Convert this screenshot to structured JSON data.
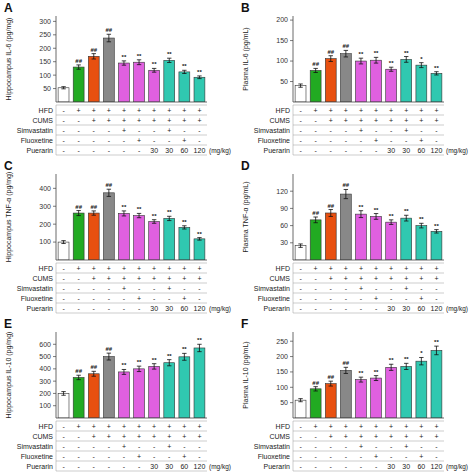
{
  "chart_data": [
    {
      "type": "bar",
      "title": "A",
      "ylabel": "Hippocampus IL-6 (pg/mg)",
      "categories": [
        null,
        null,
        null,
        null,
        null,
        null,
        null,
        null,
        null,
        null
      ],
      "values": [
        53,
        130,
        170,
        238,
        145,
        148,
        118,
        155,
        112,
        92
      ],
      "errors": [
        4,
        8,
        10,
        14,
        8,
        9,
        7,
        8,
        6,
        5
      ],
      "sig_labels": [
        null,
        "##",
        "##",
        "##",
        "**",
        "**",
        "**",
        "**",
        "**",
        "**"
      ],
      "colors": [
        "#ffffff",
        "#22aa22",
        "#e85010",
        "#888888",
        "#e060e0",
        "#e060e0",
        "#e060e0",
        "#30c8b0",
        "#30c8b0",
        "#30c8b0"
      ],
      "ylim": [
        0,
        320
      ],
      "yticks": [
        50,
        100,
        150,
        200,
        250,
        300
      ],
      "grid": false,
      "table": [
        {
          "label": "HFD",
          "cells": [
            "-",
            "+",
            "+",
            "+",
            "+",
            "+",
            "+",
            "+",
            "+",
            "+"
          ]
        },
        {
          "label": "CUMS",
          "cells": [
            "-",
            "-",
            "+",
            "+",
            "+",
            "+",
            "+",
            "+",
            "+",
            "+"
          ]
        },
        {
          "label": "Simvastatin",
          "cells": [
            "-",
            "-",
            "-",
            "-",
            "+",
            "-",
            "-",
            "+",
            "-",
            "-"
          ]
        },
        {
          "label": "Fluoxetine",
          "cells": [
            "-",
            "-",
            "-",
            "-",
            "-",
            "+",
            "-",
            "-",
            "+",
            "-"
          ]
        },
        {
          "label": "Puerarin",
          "cells": [
            "-",
            "-",
            "-",
            "-",
            "-",
            "-",
            "30",
            "30",
            "60",
            "120"
          ],
          "unit": "(mg/kg)"
        }
      ]
    },
    {
      "type": "bar",
      "title": "B",
      "ylabel": "Plasma IL-6 (pg/mL)",
      "categories": [
        null,
        null,
        null,
        null,
        null,
        null,
        null,
        null,
        null,
        null
      ],
      "values": [
        40,
        77,
        106,
        118,
        100,
        102,
        80,
        104,
        90,
        70
      ],
      "errors": [
        4,
        5,
        7,
        8,
        7,
        7,
        5,
        7,
        6,
        4
      ],
      "sig_labels": [
        null,
        "##",
        "##",
        "##",
        "**",
        "**",
        "**",
        "**",
        "*",
        "**"
      ],
      "colors": [
        "#ffffff",
        "#22aa22",
        "#e85010",
        "#888888",
        "#e060e0",
        "#e060e0",
        "#e060e0",
        "#30c8b0",
        "#30c8b0",
        "#30c8b0"
      ],
      "ylim": [
        0,
        210
      ],
      "yticks": [
        50,
        100,
        150,
        200
      ],
      "grid": false,
      "table": [
        {
          "label": "HFD",
          "cells": [
            "-",
            "+",
            "+",
            "+",
            "+",
            "+",
            "+",
            "+",
            "+",
            "+"
          ]
        },
        {
          "label": "CUMS",
          "cells": [
            "-",
            "-",
            "+",
            "+",
            "+",
            "+",
            "+",
            "+",
            "+",
            "+"
          ]
        },
        {
          "label": "Simvastatin",
          "cells": [
            "-",
            "-",
            "-",
            "-",
            "+",
            "-",
            "-",
            "+",
            "-",
            "-"
          ]
        },
        {
          "label": "Fluoxetine",
          "cells": [
            "-",
            "-",
            "-",
            "-",
            "-",
            "+",
            "-",
            "-",
            "+",
            "-"
          ]
        },
        {
          "label": "Puerarin",
          "cells": [
            "-",
            "-",
            "-",
            "-",
            "-",
            "-",
            "30",
            "30",
            "60",
            "120"
          ],
          "unit": "(mg/kg)"
        }
      ]
    },
    {
      "type": "bar",
      "title": "C",
      "ylabel": "Hippocampus TNF-α (pg/mg)",
      "categories": [
        null,
        null,
        null,
        null,
        null,
        null,
        null,
        null,
        null,
        null
      ],
      "values": [
        100,
        262,
        262,
        375,
        260,
        248,
        215,
        232,
        182,
        118
      ],
      "errors": [
        8,
        14,
        12,
        20,
        14,
        12,
        10,
        12,
        9,
        7
      ],
      "sig_labels": [
        null,
        "##",
        "##",
        "##",
        "**",
        "**",
        "**",
        "**",
        "**",
        "**"
      ],
      "colors": [
        "#ffffff",
        "#22aa22",
        "#e85010",
        "#888888",
        "#e060e0",
        "#e060e0",
        "#e060e0",
        "#30c8b0",
        "#30c8b0",
        "#30c8b0"
      ],
      "ylim": [
        0,
        480
      ],
      "yticks": [
        100,
        200,
        300,
        400
      ],
      "grid": false,
      "table": [
        {
          "label": "HFD",
          "cells": [
            "-",
            "+",
            "+",
            "+",
            "+",
            "+",
            "+",
            "+",
            "+",
            "+"
          ]
        },
        {
          "label": "CUMS",
          "cells": [
            "-",
            "-",
            "+",
            "+",
            "+",
            "+",
            "+",
            "+",
            "+",
            "+"
          ]
        },
        {
          "label": "Simvastatin",
          "cells": [
            "-",
            "-",
            "-",
            "-",
            "+",
            "-",
            "-",
            "+",
            "-",
            "-"
          ]
        },
        {
          "label": "Fluoxetine",
          "cells": [
            "-",
            "-",
            "-",
            "-",
            "-",
            "+",
            "-",
            "-",
            "+",
            "-"
          ]
        },
        {
          "label": "Puerarin",
          "cells": [
            "-",
            "-",
            "-",
            "-",
            "-",
            "-",
            "30",
            "30",
            "60",
            "120"
          ],
          "unit": "(mg/kg)"
        }
      ]
    },
    {
      "type": "bar",
      "title": "D",
      "ylabel": "Plasma TNF-α (pg/mL)",
      "categories": [
        null,
        null,
        null,
        null,
        null,
        null,
        null,
        null,
        null,
        null
      ],
      "values": [
        25,
        70,
        82,
        115,
        80,
        76,
        66,
        73,
        60,
        50
      ],
      "errors": [
        3,
        5,
        6,
        8,
        6,
        5,
        4,
        5,
        4,
        3
      ],
      "sig_labels": [
        null,
        "##",
        "##",
        "##",
        "**",
        "**",
        "**",
        "**",
        "**",
        "**"
      ],
      "colors": [
        "#ffffff",
        "#22aa22",
        "#e85010",
        "#888888",
        "#e060e0",
        "#e060e0",
        "#e060e0",
        "#30c8b0",
        "#30c8b0",
        "#30c8b0"
      ],
      "ylim": [
        0,
        150
      ],
      "yticks": [
        30,
        60,
        90,
        120
      ],
      "grid": false,
      "table": [
        {
          "label": "HFD",
          "cells": [
            "-",
            "+",
            "+",
            "+",
            "+",
            "+",
            "+",
            "+",
            "+",
            "+"
          ]
        },
        {
          "label": "CUMS",
          "cells": [
            "-",
            "-",
            "+",
            "+",
            "+",
            "+",
            "+",
            "+",
            "+",
            "+"
          ]
        },
        {
          "label": "Simvastatin",
          "cells": [
            "-",
            "-",
            "-",
            "-",
            "+",
            "-",
            "-",
            "+",
            "-",
            "-"
          ]
        },
        {
          "label": "Fluoxetine",
          "cells": [
            "-",
            "-",
            "-",
            "-",
            "-",
            "+",
            "-",
            "-",
            "+",
            "-"
          ]
        },
        {
          "label": "Puerarin",
          "cells": [
            "-",
            "-",
            "-",
            "-",
            "-",
            "-",
            "30",
            "30",
            "60",
            "120"
          ],
          "unit": "(mg/kg)"
        }
      ]
    },
    {
      "type": "bar",
      "title": "E",
      "ylabel": "Hippocampus IL-10 (pg/mg)",
      "categories": [
        null,
        null,
        null,
        null,
        null,
        null,
        null,
        null,
        null,
        null
      ],
      "values": [
        200,
        330,
        360,
        500,
        375,
        400,
        420,
        450,
        498,
        570
      ],
      "errors": [
        15,
        18,
        20,
        28,
        20,
        22,
        22,
        25,
        28,
        30
      ],
      "sig_labels": [
        null,
        "##",
        "##",
        "##",
        "**",
        "**",
        "**",
        "**",
        "**",
        "**"
      ],
      "colors": [
        "#ffffff",
        "#22aa22",
        "#e85010",
        "#888888",
        "#e060e0",
        "#e060e0",
        "#e060e0",
        "#30c8b0",
        "#30c8b0",
        "#30c8b0"
      ],
      "ylim": [
        0,
        700
      ],
      "yticks": [
        100,
        200,
        300,
        400,
        500,
        600
      ],
      "grid": false,
      "table": [
        {
          "label": "HFD",
          "cells": [
            "-",
            "+",
            "+",
            "+",
            "+",
            "+",
            "+",
            "+",
            "+",
            "+"
          ]
        },
        {
          "label": "CUMS",
          "cells": [
            "-",
            "-",
            "+",
            "+",
            "+",
            "+",
            "+",
            "+",
            "+",
            "+"
          ]
        },
        {
          "label": "Simvastatin",
          "cells": [
            "-",
            "-",
            "-",
            "-",
            "+",
            "-",
            "-",
            "+",
            "-",
            "-"
          ]
        },
        {
          "label": "Fluoxetine",
          "cells": [
            "-",
            "-",
            "-",
            "-",
            "-",
            "+",
            "-",
            "-",
            "+",
            "-"
          ]
        },
        {
          "label": "Puerarin",
          "cells": [
            "-",
            "-",
            "-",
            "-",
            "-",
            "-",
            "30",
            "30",
            "60",
            "120"
          ],
          "unit": "(mg/kg)"
        }
      ]
    },
    {
      "type": "bar",
      "title": "F",
      "ylabel": "Plasma IL-10 (pg/mL)",
      "categories": [
        null,
        null,
        null,
        null,
        null,
        null,
        null,
        null,
        null,
        null
      ],
      "values": [
        58,
        95,
        112,
        155,
        125,
        130,
        165,
        168,
        185,
        220
      ],
      "errors": [
        5,
        7,
        8,
        10,
        8,
        8,
        10,
        10,
        12,
        14
      ],
      "sig_labels": [
        null,
        "##",
        "##",
        "##",
        "**",
        "**",
        "**",
        "**",
        "*",
        "**"
      ],
      "colors": [
        "#ffffff",
        "#22aa22",
        "#e85010",
        "#888888",
        "#e060e0",
        "#e060e0",
        "#e060e0",
        "#30c8b0",
        "#30c8b0",
        "#30c8b0"
      ],
      "ylim": [
        0,
        280
      ],
      "yticks": [
        50,
        100,
        150,
        200,
        250
      ],
      "grid": false,
      "table": [
        {
          "label": "HFD",
          "cells": [
            "-",
            "+",
            "+",
            "+",
            "+",
            "+",
            "+",
            "+",
            "+",
            "+"
          ]
        },
        {
          "label": "CUMS",
          "cells": [
            "-",
            "-",
            "+",
            "+",
            "+",
            "+",
            "+",
            "+",
            "+",
            "+"
          ]
        },
        {
          "label": "Simvastatin",
          "cells": [
            "-",
            "-",
            "-",
            "-",
            "+",
            "-",
            "-",
            "+",
            "-",
            "-"
          ]
        },
        {
          "label": "Fluoxetine",
          "cells": [
            "-",
            "-",
            "-",
            "-",
            "-",
            "+",
            "-",
            "-",
            "+",
            "-"
          ]
        },
        {
          "label": "Puerarin",
          "cells": [
            "-",
            "-",
            "-",
            "-",
            "-",
            "-",
            "30",
            "30",
            "60",
            "120"
          ],
          "unit": "(mg/kg)"
        }
      ]
    }
  ]
}
